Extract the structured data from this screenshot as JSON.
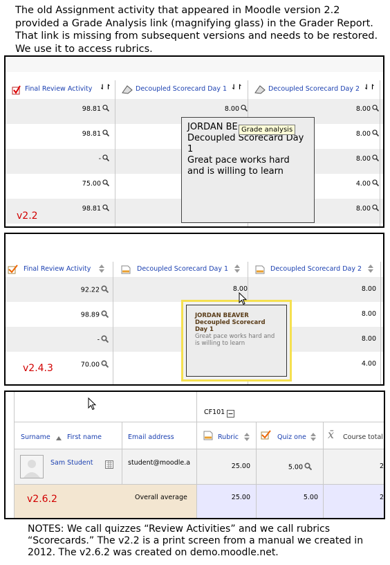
{
  "intro_text": "The old Assignment activity that appeared in Moodle version 2.2 provided a Grade Analysis link (magnifying glass) in the Grader Report. That link is missing from subsequent versions and needs to be restored. We use it to access rubrics.",
  "notes_text": "NOTES: We call quizzes “Review Activities” and we call rubrics “Scorecards.” The v2.2 is a print screen from a manual we created in 2012. The v2.6.2 was created on demo.moodle.net.",
  "panel_v22": {
    "version_label": "v2.2",
    "columns": [
      "Final Review Activity",
      "Decoupled Scorecard Day 1",
      "Decoupled Scorecard Day 2"
    ],
    "rows": [
      [
        "98.81",
        "8.00",
        "8.00"
      ],
      [
        "98.81",
        "",
        "8.00"
      ],
      [
        "-",
        "",
        "8.00"
      ],
      [
        "75.00",
        "",
        "4.00"
      ],
      [
        "98.81",
        "",
        "8.00"
      ]
    ],
    "tooltip_name": "JORDAN BE",
    "tooltip_item": "Decoupled Scorecard Day 1",
    "tooltip_comment": "Great pace works hard and is willing to learn",
    "hover_label": "Grade analysis"
  },
  "panel_v243": {
    "version_label": "v2.4.3",
    "columns": [
      "Final Review Activity",
      "Decoupled Scorecard Day 1",
      "Decoupled Scorecard Day 2"
    ],
    "rows": [
      [
        "92.22",
        "8.00",
        "8.00"
      ],
      [
        "98.89",
        "",
        "8.00"
      ],
      [
        "-",
        "",
        "8.00"
      ],
      [
        "70.00",
        "",
        "4.00"
      ]
    ],
    "tooltip_name": "JORDAN BEAVER",
    "tooltip_item": "Decoupled Scorecard Day 1",
    "tooltip_comment": "Great pace works hard and is willing to learn"
  },
  "panel_v262": {
    "version_label": "v2.6.2",
    "category": "CF101",
    "surname_header": "Surname",
    "firstname_header": "First name",
    "email_header": "Email address",
    "rubric_header": "Rubric",
    "quiz_header": "Quiz one",
    "total_header": "Course total",
    "student_name": "Sam Student",
    "student_email": "student@moodle.a",
    "rubric_value": "25.00",
    "quiz_value": "5.00",
    "total_partial": "2",
    "overall_label": "Overall average",
    "avg_rubric": "25.00",
    "avg_quiz": "5.00",
    "avg_total_partial": "2"
  },
  "colors": {
    "link_blue": "#1a3fb0",
    "version_red": "#d10000",
    "highlight_yellow": "#f5e050",
    "avg_row": "#e8e8ff"
  }
}
